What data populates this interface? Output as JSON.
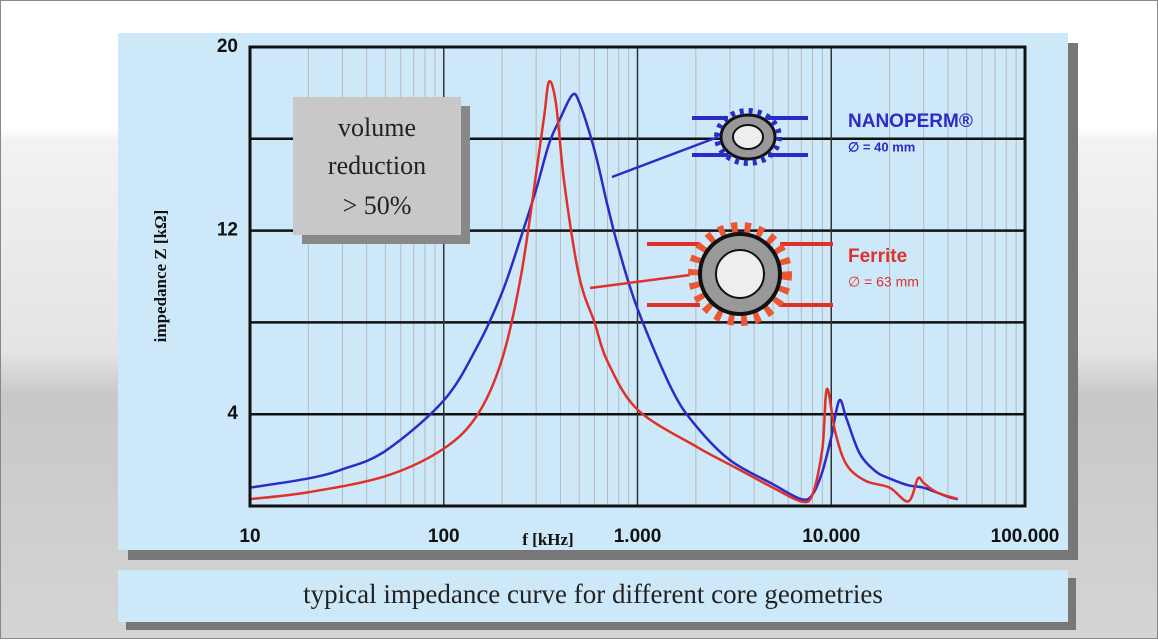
{
  "chart_data": {
    "type": "line",
    "x_label": "f [kHz]",
    "y_label": "impedance  Z [kΩ]",
    "caption": "typical impedance curve for different core geometries",
    "annotation_lines": [
      "volume",
      "reduction",
      "> 50%"
    ],
    "xlim": [
      10,
      100000
    ],
    "xscale": "log",
    "minor_grid": true,
    "xticks": [
      10,
      100,
      {
        "value": 1000,
        "label": "1.000"
      },
      {
        "value": 10000,
        "label": "10.000"
      },
      {
        "value": 100000,
        "label": "100.000"
      }
    ],
    "ylim": [
      0,
      20
    ],
    "yticks": [
      4,
      12,
      20
    ],
    "ygrid": [
      4,
      8,
      12,
      16,
      20
    ],
    "series": [
      {
        "name": "NANOPERM®",
        "note": "∅ = 40 mm",
        "color": "#2b2bc8",
        "x": [
          10,
          20,
          30,
          50,
          100,
          150,
          200,
          250,
          300,
          350,
          400,
          460,
          500,
          600,
          700,
          800,
          1000,
          1500,
          2000,
          3000,
          5000,
          7000,
          8000,
          9000,
          10000,
          11000,
          12000,
          14000,
          17000,
          20000,
          25000,
          30000,
          40000,
          45000
        ],
        "values": [
          0.8,
          1.2,
          1.6,
          2.4,
          4.6,
          7,
          9.3,
          11.7,
          13.8,
          15.8,
          16.9,
          17.9,
          17.6,
          15.5,
          13.1,
          11.2,
          8.6,
          5.1,
          3.5,
          2,
          0.95,
          0.3,
          0.5,
          1.5,
          3,
          4.6,
          3.8,
          2.3,
          1.5,
          1.2,
          0.9,
          0.8,
          0.4,
          0.3
        ]
      },
      {
        "name": "Ferrite",
        "note": "∅ = 63 mm",
        "color": "#e0302a",
        "x": [
          10,
          20,
          50,
          100,
          150,
          200,
          250,
          300,
          330,
          350,
          380,
          420,
          500,
          600,
          700,
          1000,
          2000,
          3000,
          5000,
          7000,
          8000,
          9000,
          9500,
          10500,
          12000,
          15000,
          20000,
          25000,
          28000,
          30000,
          35000,
          45000
        ],
        "values": [
          0.3,
          0.6,
          1.3,
          2.5,
          4,
          6.4,
          10,
          14.5,
          17,
          18.5,
          17.5,
          14,
          10,
          8,
          6.3,
          4.2,
          2.6,
          1.8,
          0.8,
          0.2,
          0.5,
          2.5,
          5.1,
          3.2,
          1.8,
          1.1,
          0.8,
          0.2,
          1.2,
          1,
          0.6,
          0.3
        ]
      }
    ]
  }
}
